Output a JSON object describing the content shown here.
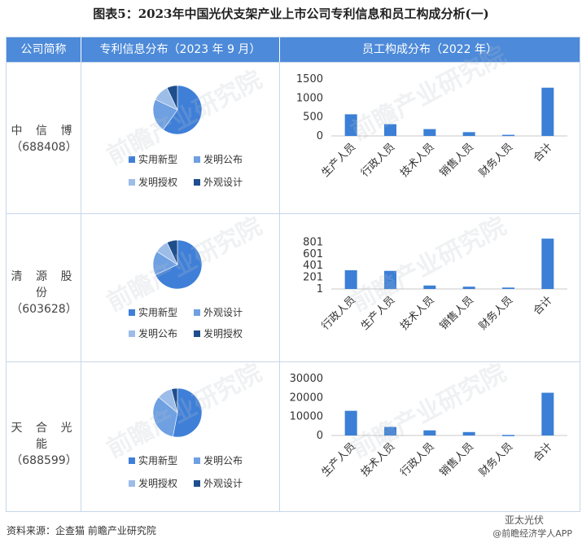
{
  "title": "图表5：2023年中国光伏支架产业上市公司专利信息和员工构成分析(一)",
  "headers": {
    "company": "公司简称",
    "patent": "专利信息分布（2023 年 9 月）",
    "staff": "员工构成分布（2022 年）"
  },
  "watermark": "前瞻产业研究院",
  "footer": "资料来源：企查猫 前瞻产业研究院",
  "brand_top": "亚太光伏",
  "brand_bottom": "@前瞻经济学人APP",
  "colors": {
    "header": "#4d8ad9",
    "pie1": "#3f7fd8",
    "pie2": "#6ea0e2",
    "pie3": "#9dbde9",
    "pie4": "#1f4e8c",
    "bar": "#3b7fd6"
  },
  "rows": [
    {
      "name": "中 信 博",
      "code": "（688408）",
      "legend": [
        {
          "label": "实用新型",
          "color": "#3f7fd8"
        },
        {
          "label": "发明公布",
          "color": "#6ea0e2"
        },
        {
          "label": "发明授权",
          "color": "#9dbde9"
        },
        {
          "label": "外观设计",
          "color": "#1f4e8c"
        }
      ]
    },
    {
      "name": "清 源 股 份",
      "code": "（603628）",
      "legend": [
        {
          "label": "实用新型",
          "color": "#3f7fd8"
        },
        {
          "label": "外观设计",
          "color": "#6ea0e2"
        },
        {
          "label": "发明公布",
          "color": "#9dbde9"
        },
        {
          "label": "发明授权",
          "color": "#1f4e8c"
        }
      ]
    },
    {
      "name": "天 合 光 能",
      "code": "（688599）",
      "legend": [
        {
          "label": "实用新型",
          "color": "#3f7fd8"
        },
        {
          "label": "发明公布",
          "color": "#6ea0e2"
        },
        {
          "label": "发明授权",
          "color": "#9dbde9"
        },
        {
          "label": "外观设计",
          "color": "#1f4e8c"
        }
      ]
    }
  ],
  "chart_data": [
    {
      "type": "pie",
      "company": "中信博",
      "labels": [
        "实用新型",
        "发明公布",
        "发明授权",
        "外观设计"
      ],
      "values": [
        60,
        22,
        11,
        7
      ]
    },
    {
      "type": "bar",
      "company": "中信博",
      "categories": [
        "生产人员",
        "行政人员",
        "技术人员",
        "销售人员",
        "财务人员",
        "合计"
      ],
      "values": [
        570,
        310,
        180,
        100,
        30,
        1270
      ],
      "yticks": [
        "1500",
        "1000",
        "500",
        "0"
      ],
      "ylim": [
        0,
        1500
      ]
    },
    {
      "type": "pie",
      "company": "清源股份",
      "labels": [
        "实用新型",
        "外观设计",
        "发明公布",
        "发明授权"
      ],
      "values": [
        68,
        16,
        9,
        7
      ]
    },
    {
      "type": "bar",
      "company": "清源股份",
      "categories": [
        "行政人员",
        "生产人员",
        "技术人员",
        "销售人员",
        "财务人员",
        "合计"
      ],
      "values": [
        320,
        310,
        60,
        40,
        25,
        860
      ],
      "yticks": [
        "801",
        "601",
        "401",
        "201",
        "1"
      ],
      "ylim": [
        1,
        1001
      ]
    },
    {
      "type": "pie",
      "company": "天合光能",
      "labels": [
        "实用新型",
        "发明公布",
        "发明授权",
        "外观设计"
      ],
      "values": [
        53,
        33,
        10,
        4
      ]
    },
    {
      "type": "bar",
      "company": "天合光能",
      "categories": [
        "生产人员",
        "技术人员",
        "行政人员",
        "销售人员",
        "财务人员",
        "合计"
      ],
      "values": [
        13000,
        4500,
        2700,
        1800,
        300,
        22500
      ],
      "yticks": [
        "30000",
        "20000",
        "10000",
        "0"
      ],
      "ylim": [
        0,
        30000
      ]
    }
  ]
}
